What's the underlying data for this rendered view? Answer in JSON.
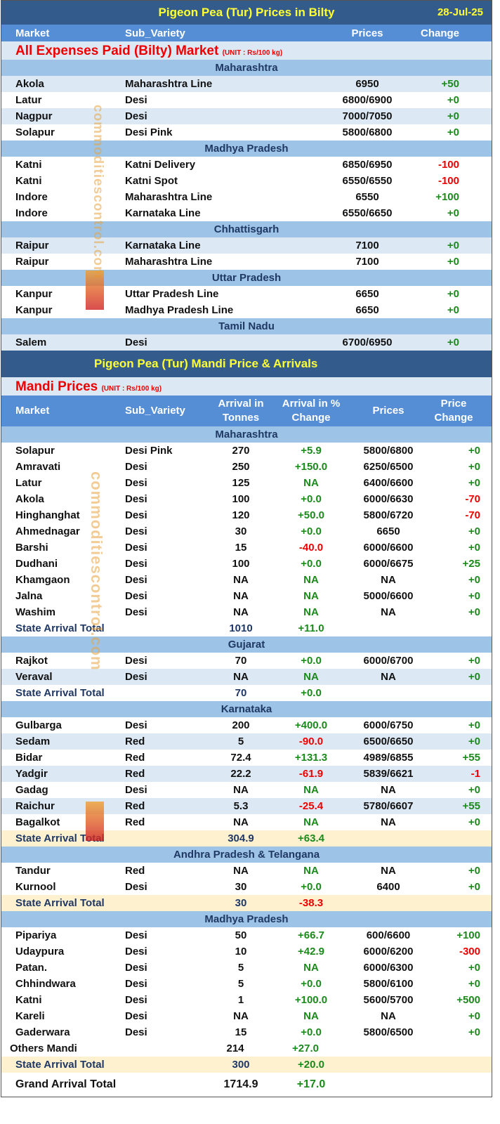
{
  "bilty": {
    "title": "Pigeon Pea (Tur) Prices in Bilty",
    "date": "28-Jul-25",
    "headers": {
      "market": "Market",
      "sub_variety": "Sub_Variety",
      "prices": "Prices",
      "change": "Change"
    },
    "section_title": "All Expenses Paid (Bilty) Market",
    "unit": "(UNIT : Rs/100 kg)",
    "states": [
      {
        "name": "Maharashtra",
        "rows": [
          {
            "market": "Akola",
            "sub_variety": "Maharashtra Line",
            "prices": "6950",
            "change": "+50"
          },
          {
            "market": "Latur",
            "sub_variety": "Desi",
            "prices": "6800/6900",
            "change": "+0"
          },
          {
            "market": "Nagpur",
            "sub_variety": "Desi",
            "prices": "7000/7050",
            "change": "+0"
          },
          {
            "market": "Solapur",
            "sub_variety": "Desi Pink",
            "prices": "5800/6800",
            "change": "+0"
          }
        ]
      },
      {
        "name": "Madhya Pradesh",
        "rows": [
          {
            "market": "Katni",
            "sub_variety": "Katni Delivery",
            "prices": "6850/6950",
            "change": "-100"
          },
          {
            "market": "Katni",
            "sub_variety": "Katni Spot",
            "prices": "6550/6550",
            "change": "-100"
          },
          {
            "market": "Indore",
            "sub_variety": "Maharashtra Line",
            "prices": "6550",
            "change": "+100"
          },
          {
            "market": "Indore",
            "sub_variety": "Karnataka Line",
            "prices": "6550/6650",
            "change": "+0"
          }
        ]
      },
      {
        "name": "Chhattisgarh",
        "rows": [
          {
            "market": "Raipur",
            "sub_variety": "Karnataka Line",
            "prices": "7100",
            "change": "+0"
          },
          {
            "market": "Raipur",
            "sub_variety": "Maharashtra Line",
            "prices": "7100",
            "change": "+0"
          }
        ]
      },
      {
        "name": "Uttar Pradesh",
        "rows": [
          {
            "market": "Kanpur",
            "sub_variety": "Uttar Pradesh Line",
            "prices": "6650",
            "change": "+0"
          },
          {
            "market": "Kanpur",
            "sub_variety": "Madhya Pradesh Line",
            "prices": "6650",
            "change": "+0"
          }
        ]
      },
      {
        "name": "Tamil Nadu",
        "rows": [
          {
            "market": "Salem",
            "sub_variety": "Desi",
            "prices": "6700/6950",
            "change": "+0"
          }
        ]
      }
    ]
  },
  "mandi": {
    "title": "Pigeon Pea (Tur) Mandi Price & Arrivals",
    "section_title": "Mandi Prices",
    "unit": "(UNIT : Rs/100 kg)",
    "headers": {
      "market": "Market",
      "sub_variety": "Sub_Variety",
      "arrival": "Arrival in Tonnes",
      "arrival_change": "Arrival  in % Change",
      "prices": "Prices",
      "price_change": "Price Change"
    },
    "total_label": "State Arrival Total",
    "states": [
      {
        "name": "Maharashtra",
        "rows": [
          [
            "Solapur",
            "Desi Pink",
            "270",
            "+5.9",
            "5800/6800",
            "+0"
          ],
          [
            "Amravati",
            "Desi",
            "250",
            "+150.0",
            "6250/6500",
            "+0"
          ],
          [
            "Latur",
            "Desi",
            "125",
            "NA",
            "6400/6600",
            "+0"
          ],
          [
            "Akola",
            "Desi",
            "100",
            "+0.0",
            "6000/6630",
            "-70"
          ],
          [
            "Hinghanghat",
            "Desi",
            "120",
            "+50.0",
            "5800/6720",
            "-70"
          ],
          [
            "Ahmednagar",
            "Desi",
            "30",
            "+0.0",
            "6650",
            "+0"
          ],
          [
            "Barshi",
            "Desi",
            "15",
            "-40.0",
            "6000/6600",
            "+0"
          ],
          [
            "Dudhani",
            "Desi",
            "100",
            "+0.0",
            "6000/6675",
            "+25"
          ],
          [
            "Khamgaon",
            "Desi",
            "NA",
            "NA",
            "NA",
            "+0"
          ],
          [
            "Jalna",
            "Desi",
            "NA",
            "NA",
            "5000/6600",
            "+0"
          ],
          [
            "Washim",
            "Desi",
            "NA",
            "NA",
            "NA",
            "+0"
          ]
        ],
        "total": {
          "arrival": "1010",
          "change": "+11.0"
        }
      },
      {
        "name": "Gujarat",
        "rows": [
          [
            "Rajkot",
            "Desi",
            "70",
            "+0.0",
            "6000/6700",
            "+0"
          ],
          [
            "Veraval",
            "Desi",
            "NA",
            "NA",
            "NA",
            "+0"
          ]
        ],
        "total": {
          "arrival": "70",
          "change": "+0.0"
        }
      },
      {
        "name": "Karnataka",
        "rows": [
          [
            "Gulbarga",
            "Desi",
            "200",
            "+400.0",
            "6000/6750",
            "+0"
          ],
          [
            "Sedam",
            "Red",
            "5",
            "-90.0",
            "6500/6650",
            "+0"
          ],
          [
            "Bidar",
            "Red",
            "72.4",
            "+131.3",
            "4989/6855",
            "+55"
          ],
          [
            "Yadgir",
            "Red",
            "22.2",
            "-61.9",
            "5839/6621",
            "-1"
          ],
          [
            "Gadag",
            "Desi",
            "NA",
            "NA",
            "NA",
            "+0"
          ],
          [
            "Raichur",
            "Red",
            "5.3",
            "-25.4",
            "5780/6607",
            "+55"
          ],
          [
            "Bagalkot",
            "Red",
            "NA",
            "NA",
            "NA",
            "+0"
          ]
        ],
        "total": {
          "arrival": "304.9",
          "change": "+63.4"
        }
      },
      {
        "name": "Andhra Pradesh & Telangana",
        "rows": [
          [
            "Tandur",
            "Red",
            "NA",
            "NA",
            "NA",
            "+0"
          ],
          [
            "Kurnool",
            "Desi",
            "30",
            "+0.0",
            "6400",
            "+0"
          ]
        ],
        "total": {
          "arrival": "30",
          "change": "-38.3"
        }
      },
      {
        "name": "Madhya Pradesh",
        "rows": [
          [
            "Pipariya",
            "Desi",
            "50",
            "+66.7",
            "600/6600",
            "+100"
          ],
          [
            "Udaypura",
            "Desi",
            "10",
            "+42.9",
            "6000/6200",
            "-300"
          ],
          [
            "Patan.",
            "Desi",
            "5",
            "NA",
            "6000/6300",
            "+0"
          ],
          [
            "Chhindwara",
            "Desi",
            "5",
            "+0.0",
            "5800/6100",
            "+0"
          ],
          [
            "Katni",
            "Desi",
            "1",
            "+100.0",
            "5600/5700",
            "+500"
          ],
          [
            "Kareli",
            "Desi",
            "NA",
            "NA",
            "NA",
            "+0"
          ],
          [
            "Gaderwara",
            "Desi",
            "15",
            "+0.0",
            "5800/6500",
            "+0"
          ]
        ],
        "others": {
          "label": "Others Mandi",
          "arrival": "214",
          "change": "+27.0"
        },
        "total": {
          "arrival": "300",
          "change": "+20.0"
        }
      }
    ],
    "grand_total": {
      "label": "Grand Arrival Total",
      "arrival": "1714.9",
      "change": "+17.0"
    }
  },
  "watermark": "commoditiescontrol.com",
  "colors": {
    "title_bg": "#335c8c",
    "title_text": "#ffff33",
    "header_bg": "#558ed5",
    "state_bg": "#9dc3e6",
    "positive": "#1a8a1a",
    "negative": "#e00000",
    "grand_total_bg": "#ffc000"
  }
}
